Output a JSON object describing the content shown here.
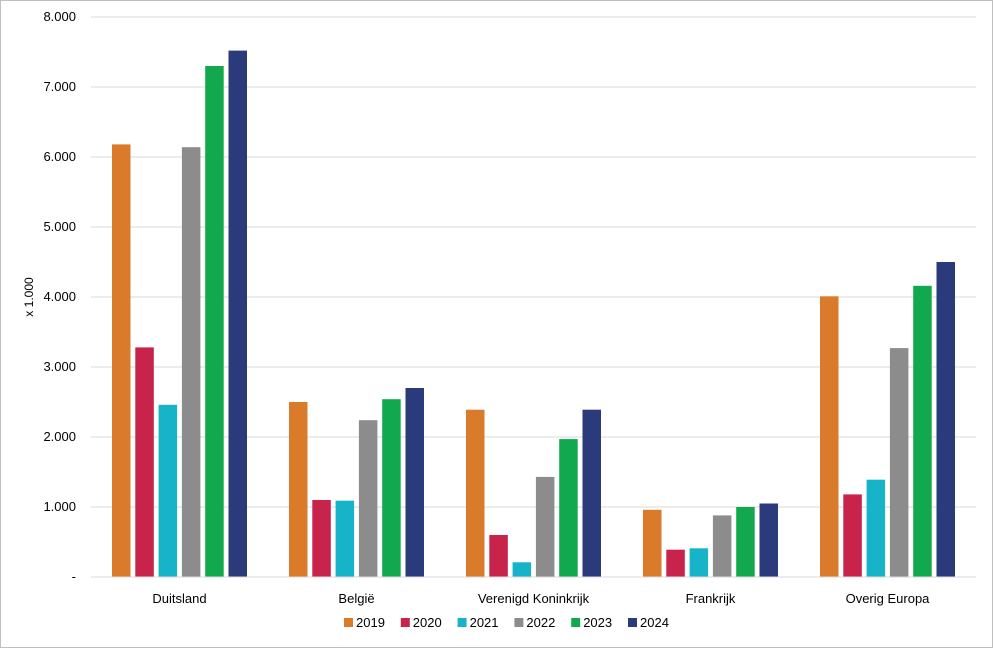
{
  "chart_data": {
    "type": "bar",
    "title": "",
    "xlabel": "",
    "ylabel": "x 1.000",
    "ylim": [
      0,
      8000
    ],
    "yticks": [
      0,
      1000,
      2000,
      3000,
      4000,
      5000,
      6000,
      7000,
      8000
    ],
    "ytick_labels": [
      "-",
      "1.000",
      "2.000",
      "3.000",
      "4.000",
      "5.000",
      "6.000",
      "7.000",
      "8.000"
    ],
    "grid": true,
    "legend_position": "bottom",
    "categories": [
      "Duitsland",
      "België",
      "Verenigd Koninkrijk",
      "Frankrijk",
      "Overig Europa"
    ],
    "series": [
      {
        "name": "2019",
        "color": "#d97b2b",
        "values": [
          6180,
          2500,
          2390,
          960,
          4010
        ]
      },
      {
        "name": "2020",
        "color": "#c8234a",
        "values": [
          3280,
          1100,
          600,
          390,
          1180
        ]
      },
      {
        "name": "2021",
        "color": "#17b3c9",
        "values": [
          2460,
          1090,
          210,
          410,
          1390
        ]
      },
      {
        "name": "2022",
        "color": "#8c8c8c",
        "values": [
          6140,
          2240,
          1430,
          880,
          3270
        ]
      },
      {
        "name": "2023",
        "color": "#12a84e",
        "values": [
          7300,
          2540,
          1970,
          1000,
          4160
        ]
      },
      {
        "name": "2024",
        "color": "#2a3a7a",
        "values": [
          7520,
          2700,
          2390,
          1050,
          4500
        ]
      }
    ]
  }
}
